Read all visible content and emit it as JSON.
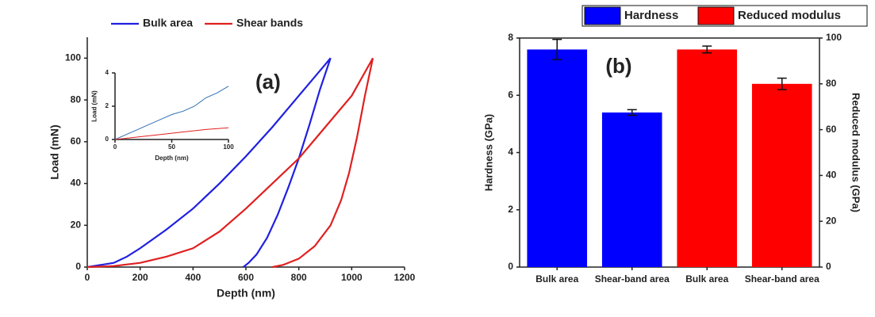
{
  "chart_data": [
    {
      "type": "line",
      "annotation": "(a)",
      "x_label": "Depth (nm)",
      "y_label": "Load (mN)",
      "xlim": [
        0,
        1200
      ],
      "xticks": [
        0,
        200,
        400,
        600,
        800,
        1000,
        1200
      ],
      "ylim": [
        0,
        110
      ],
      "yticks": [
        0,
        20,
        40,
        60,
        80,
        100
      ],
      "series": [
        {
          "name": "Bulk area",
          "color": "#2020e0",
          "x": [
            0,
            100,
            150,
            200,
            300,
            400,
            500,
            600,
            700,
            800,
            900,
            920,
            880,
            840,
            800,
            760,
            720,
            680,
            640,
            610,
            590
          ],
          "values": [
            0,
            2,
            5,
            9,
            18,
            28,
            40,
            53,
            67,
            82,
            97,
            100,
            85,
            68,
            52,
            38,
            25,
            14,
            6,
            2,
            0
          ]
        },
        {
          "name": "Shear bands",
          "color": "#e02020",
          "x": [
            0,
            100,
            200,
            300,
            400,
            500,
            600,
            700,
            800,
            900,
            1000,
            1080,
            1050,
            1020,
            990,
            960,
            920,
            860,
            800,
            740,
            700
          ],
          "values": [
            0,
            0.5,
            2,
            5,
            9,
            17,
            28,
            40,
            52,
            67,
            82,
            100,
            82,
            62,
            45,
            32,
            20,
            10,
            4,
            1,
            0
          ]
        }
      ]
    },
    {
      "type": "line",
      "x_label": "Depth (nm)",
      "y_label": "Load (mN)",
      "xlim": [
        0,
        100
      ],
      "xticks": [
        0,
        50,
        100
      ],
      "ylim": [
        0,
        4
      ],
      "yticks": [
        0,
        2,
        4
      ],
      "series": [
        {
          "color": "#3070b0",
          "x": [
            0,
            10,
            20,
            30,
            40,
            50,
            60,
            70,
            80,
            90,
            100
          ],
          "values": [
            0,
            0.3,
            0.6,
            0.9,
            1.2,
            1.5,
            1.7,
            2.0,
            2.5,
            2.8,
            3.2
          ]
        },
        {
          "color": "#e02020",
          "x": [
            0,
            20,
            40,
            60,
            80,
            100
          ],
          "values": [
            0,
            0.15,
            0.3,
            0.45,
            0.6,
            0.7
          ]
        }
      ]
    },
    {
      "type": "bar",
      "annotation": "(b)",
      "y_label": "Hardness (GPa)",
      "y2_label": "Reduced modulus (GPa)",
      "categories": [
        "Bulk area",
        "Shear-band area",
        "Bulk area",
        "Shear-band area"
      ],
      "ylim": [
        0,
        8
      ],
      "yticks": [
        0,
        2,
        4,
        6,
        8
      ],
      "y2lim": [
        0,
        100
      ],
      "y2ticks": [
        0,
        20,
        40,
        60,
        80,
        100
      ],
      "series": [
        {
          "name": "Hardness",
          "color": "#0000ff",
          "values": [
            7.6,
            5.4,
            null,
            null
          ],
          "errors": [
            0.35,
            0.1,
            null,
            null
          ]
        },
        {
          "name": "Reduced modulus",
          "color": "#ff0000",
          "axis": "y2",
          "values": [
            null,
            null,
            95,
            80
          ],
          "errors": [
            null,
            null,
            1.5,
            2.5
          ]
        }
      ]
    }
  ]
}
